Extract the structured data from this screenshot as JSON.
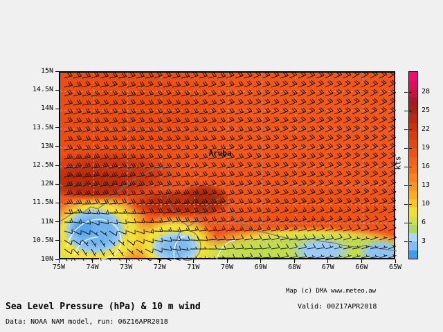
{
  "footer": {
    "title": "Sea Level Pressure (hPa) & 10 m wind",
    "valid": "Valid: 00Z17APR2018",
    "data_source": "Data: NOAA NAM model, run: 06Z16APR2018",
    "map_credit": "Map (c) DMA www.meteo.aw"
  },
  "map": {
    "place_label": "Aruba",
    "lat_labels": [
      "15N",
      "14.5N",
      "14N",
      "13.5N",
      "13N",
      "12.5N",
      "12N",
      "11.5N",
      "11N",
      "10.5N",
      "10N"
    ],
    "lon_labels": [
      "75W",
      "74W",
      "73W",
      "72W",
      "71W",
      "70W",
      "69W",
      "68W",
      "67W",
      "66W",
      "65W"
    ],
    "lat_range": [
      10,
      15
    ],
    "lon_range": [
      -75,
      -65
    ]
  },
  "colorbar": {
    "unit": "kts",
    "tick_labels": [
      "28",
      "25",
      "22",
      "19",
      "16",
      "13",
      "10",
      "6",
      "3"
    ],
    "colors_top_to_bottom": [
      "#ED1168",
      "#D9125B",
      "#C0163F",
      "#A31D27",
      "#A62413",
      "#B92B10",
      "#C9330E",
      "#D63D11",
      "#E24814",
      "#EC5317",
      "#F26019",
      "#F66F1B",
      "#F9821E",
      "#FA961F",
      "#FBAC22",
      "#F9C42B",
      "#F2DE35",
      "#CFE24A",
      "#A9D96B",
      "#ACD7F7",
      "#7FBDF4",
      "#3F9DEF"
    ]
  },
  "chart_data": {
    "type": "heatmap",
    "title": "Sea Level Pressure (hPa) & 10 m wind",
    "unit": "kts",
    "lats": [
      15,
      14.5,
      14,
      13.5,
      13,
      12.5,
      12,
      11.5,
      11,
      10.5,
      10
    ],
    "lons": [
      75,
      74,
      73,
      72,
      71,
      70,
      69,
      68,
      67,
      66,
      65
    ],
    "wind_speed_kts": [
      [
        20,
        20,
        20,
        20,
        19,
        19,
        19,
        19,
        19,
        19,
        19
      ],
      [
        20,
        20,
        20,
        19,
        19,
        19,
        19,
        19,
        19,
        19,
        19
      ],
      [
        21,
        21,
        20,
        20,
        19,
        19,
        19,
        19,
        19,
        19,
        19
      ],
      [
        21,
        21,
        20,
        20,
        20,
        19,
        19,
        19,
        19,
        19,
        19
      ],
      [
        22,
        22,
        21,
        20,
        20,
        20,
        19,
        19,
        19,
        19,
        19
      ],
      [
        24,
        23,
        22,
        21,
        20,
        20,
        20,
        19,
        19,
        19,
        19
      ],
      [
        25,
        24,
        23,
        22,
        21,
        20,
        20,
        20,
        19,
        19,
        19
      ],
      [
        24,
        22,
        20,
        23,
        24,
        22,
        20,
        19,
        19,
        18,
        18
      ],
      [
        15,
        8,
        12,
        18,
        20,
        16,
        15,
        14,
        13,
        12,
        12
      ],
      [
        10,
        4,
        8,
        10,
        8,
        10,
        12,
        10,
        8,
        6,
        8
      ],
      [
        8,
        3,
        6,
        5,
        4,
        8,
        10,
        8,
        5,
        4,
        6
      ]
    ],
    "wind_dir_from_deg": [
      [
        75,
        75,
        75,
        75,
        75,
        72,
        70,
        68,
        65,
        62,
        60
      ],
      [
        76,
        76,
        76,
        75,
        75,
        72,
        70,
        68,
        65,
        62,
        60
      ],
      [
        78,
        78,
        77,
        76,
        75,
        73,
        70,
        68,
        65,
        63,
        60
      ],
      [
        78,
        78,
        77,
        76,
        75,
        73,
        71,
        68,
        66,
        63,
        60
      ],
      [
        80,
        80,
        78,
        77,
        76,
        74,
        72,
        70,
        67,
        64,
        62
      ],
      [
        82,
        80,
        79,
        78,
        76,
        75,
        72,
        70,
        68,
        65,
        63
      ],
      [
        84,
        82,
        80,
        78,
        77,
        75,
        73,
        71,
        68,
        66,
        64
      ],
      [
        86,
        84,
        82,
        80,
        78,
        76,
        74,
        72,
        70,
        68,
        66
      ],
      [
        95,
        110,
        100,
        85,
        80,
        78,
        76,
        74,
        72,
        70,
        68
      ],
      [
        120,
        150,
        130,
        100,
        90,
        85,
        80,
        78,
        76,
        74,
        72
      ],
      [
        130,
        170,
        140,
        110,
        95,
        90,
        85,
        80,
        78,
        76,
        74
      ]
    ]
  }
}
